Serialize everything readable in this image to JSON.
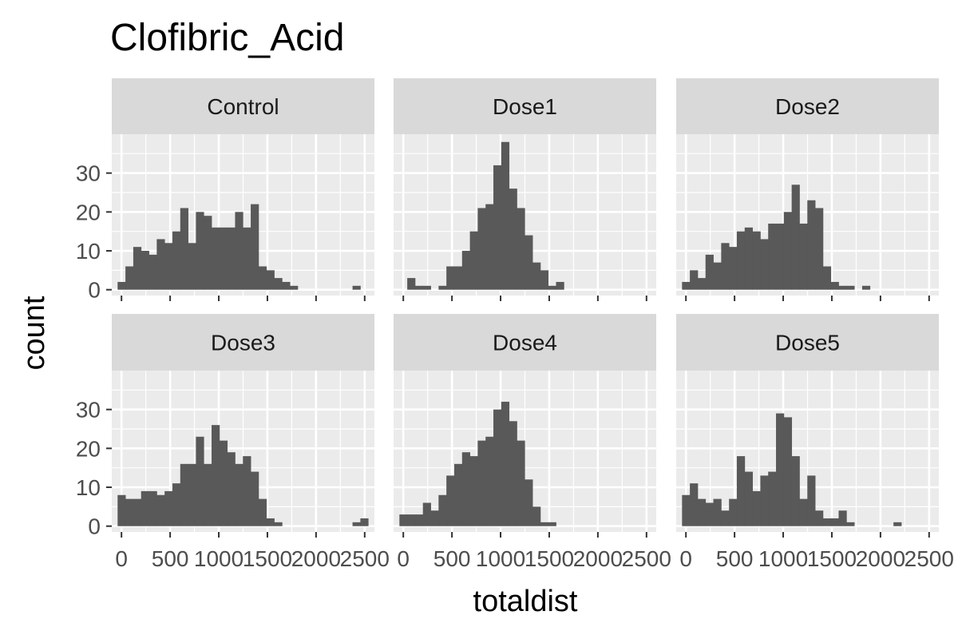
{
  "chart_data": {
    "type": "bar",
    "subtype": "faceted-histogram",
    "title": "Clofibric_Acid",
    "xlabel": "totaldist",
    "ylabel": "count",
    "xlim": [
      -100,
      2600
    ],
    "ylim": [
      -1.5,
      40
    ],
    "x_ticks": [
      0,
      500,
      1000,
      1500,
      2000,
      2500
    ],
    "x_tick_labels": [
      "0",
      "500",
      "1000",
      "1500",
      "2000",
      "2500"
    ],
    "y_ticks": [
      0,
      10,
      20,
      30
    ],
    "y_tick_labels": [
      "0",
      "10",
      "20",
      "30"
    ],
    "bin_start": -40,
    "bin_width": 80.5,
    "grid": true,
    "bar_color": "#595959",
    "panel_background": "#ebebeb",
    "strip_background": "#d9d9d9",
    "panels": [
      {
        "label": "Control",
        "counts": [
          2,
          6,
          11,
          10,
          9,
          13,
          12,
          15,
          21,
          12,
          20,
          19,
          16,
          16,
          16,
          20,
          16,
          22,
          6,
          5,
          3,
          2,
          1,
          0,
          0,
          0,
          0,
          0,
          0,
          0,
          1,
          0
        ]
      },
      {
        "label": "Dose1",
        "counts": [
          0,
          3,
          1,
          1,
          0,
          1,
          6,
          6,
          10,
          15,
          21,
          22,
          32,
          38,
          26,
          21,
          14,
          7,
          5,
          1,
          2,
          0,
          0,
          0,
          0,
          0,
          0,
          0,
          0,
          0,
          0,
          0
        ]
      },
      {
        "label": "Dose2",
        "counts": [
          2,
          5,
          3,
          9,
          7,
          12,
          11,
          15,
          16,
          15,
          13,
          17,
          17,
          20,
          27,
          17,
          23,
          21,
          6,
          2,
          1,
          1,
          0,
          1,
          0,
          0,
          0,
          0,
          0,
          0,
          0,
          0
        ]
      },
      {
        "label": "Dose3",
        "counts": [
          8,
          7,
          7,
          9,
          9,
          8,
          9,
          11,
          16,
          16,
          23,
          16,
          26,
          22,
          19,
          16,
          18,
          14,
          7,
          2,
          1,
          0,
          0,
          0,
          0,
          0,
          0,
          0,
          0,
          0,
          1,
          2
        ]
      },
      {
        "label": "Dose4",
        "counts": [
          3,
          3,
          3,
          6,
          4,
          8,
          13,
          16,
          19,
          18,
          22,
          23,
          30,
          32,
          27,
          22,
          12,
          5,
          1,
          1,
          0,
          0,
          0,
          0,
          0,
          0,
          0,
          0,
          0,
          0,
          0,
          0
        ]
      },
      {
        "label": "Dose5",
        "counts": [
          8,
          11,
          7,
          6,
          7,
          4,
          7,
          18,
          14,
          9,
          13,
          14,
          29,
          28,
          18,
          7,
          13,
          4,
          2,
          2,
          4,
          1,
          0,
          0,
          0,
          0,
          0,
          1,
          0,
          0,
          0,
          0
        ]
      }
    ]
  }
}
